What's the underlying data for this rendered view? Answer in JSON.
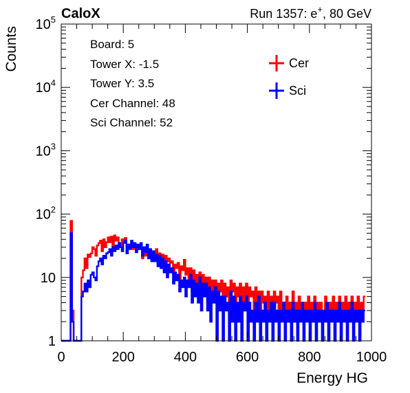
{
  "header": {
    "brand": "CaloX",
    "run_info": "Run 1357: e+, 80 GeV"
  },
  "info_box": [
    "Board: 5",
    "Tower X: -1.5",
    "Tower Y: 3.5",
    "Cer Channel: 48",
    "Sci Channel: 52"
  ],
  "colors": {
    "Cer": "#ff0000",
    "Sci": "#0000ff",
    "frame": "#000000"
  },
  "chart_data": {
    "type": "line",
    "style": "step-histogram",
    "xlabel": "Energy HG",
    "ylabel": "Counts",
    "xlim": [
      0,
      1000
    ],
    "ylim": [
      1,
      100000
    ],
    "yscale": "log",
    "grid": false,
    "legend_position": "top-right",
    "x_ticks": [
      "0",
      "200",
      "400",
      "600",
      "800",
      "1000"
    ],
    "y_ticks": [
      {
        "value": 1,
        "base": "1",
        "exp": ""
      },
      {
        "value": 10,
        "base": "10",
        "exp": ""
      },
      {
        "value": 100,
        "base": "10",
        "exp": "2"
      },
      {
        "value": 1000,
        "base": "10",
        "exp": "3"
      },
      {
        "value": 10000,
        "base": "10",
        "exp": "4"
      },
      {
        "value": 100000,
        "base": "10",
        "exp": "5"
      }
    ],
    "bin_width": 5,
    "x_start": 0,
    "series": [
      {
        "name": "Cer",
        "color": "#ff0000",
        "values": [
          0,
          0,
          0,
          0,
          0,
          0,
          78,
          3,
          0,
          0,
          0,
          0,
          0,
          10,
          13,
          20,
          14,
          23,
          21,
          24,
          30,
          28,
          22,
          32,
          35,
          38,
          26,
          40,
          30,
          36,
          43,
          36,
          44,
          30,
          46,
          38,
          43,
          35,
          30,
          40,
          36,
          42,
          32,
          33,
          30,
          38,
          28,
          34,
          25,
          32,
          28,
          30,
          20,
          26,
          22,
          30,
          24,
          26,
          20,
          23,
          18,
          28,
          17,
          24,
          20,
          23,
          16,
          22,
          18,
          20,
          17,
          18,
          12,
          16,
          14,
          17,
          9,
          15,
          13,
          19,
          11,
          14,
          8,
          14,
          6,
          13,
          8,
          11,
          7,
          12,
          6,
          11,
          8,
          10,
          4,
          10,
          5,
          9,
          6,
          9,
          4,
          8,
          6,
          9,
          4,
          8,
          5,
          7,
          4,
          9,
          6,
          8,
          3,
          7,
          5,
          8,
          4,
          7,
          3,
          8,
          4,
          7,
          5,
          6,
          3,
          7,
          4,
          6,
          2,
          6,
          4,
          5,
          3,
          6,
          2,
          5,
          3,
          6,
          4,
          5,
          2,
          6,
          3,
          4,
          2,
          5,
          3,
          4,
          2,
          6,
          3,
          4,
          2,
          5,
          3,
          4,
          2,
          4,
          3,
          5,
          2,
          4,
          3,
          5,
          2,
          4,
          3,
          4,
          2,
          3,
          5,
          3,
          2,
          4,
          3,
          5,
          2,
          4,
          3,
          5,
          2,
          4,
          3,
          5,
          2,
          4,
          3,
          5,
          2,
          4,
          3,
          5,
          2,
          4,
          3,
          5
        ]
      },
      {
        "name": "Sci",
        "color": "#0000ff",
        "values": [
          0,
          0,
          0,
          0,
          0,
          0,
          50,
          2,
          0,
          0,
          0,
          0,
          0,
          5,
          6,
          8,
          6,
          9,
          7,
          11,
          12,
          10,
          9,
          15,
          18,
          20,
          16,
          22,
          20,
          24,
          25,
          28,
          22,
          30,
          26,
          32,
          28,
          35,
          30,
          26,
          35,
          38,
          24,
          33,
          28,
          38,
          30,
          35,
          25,
          33,
          28,
          35,
          22,
          30,
          25,
          33,
          20,
          28,
          18,
          26,
          18,
          23,
          15,
          22,
          14,
          20,
          12,
          18,
          10,
          16,
          12,
          14,
          8,
          12,
          9,
          11,
          6,
          9,
          7,
          10,
          5,
          9,
          7,
          11,
          4,
          9,
          5,
          8,
          4,
          10,
          3,
          8,
          5,
          8,
          3,
          7,
          2,
          6,
          4,
          7,
          1,
          6,
          3,
          5,
          1,
          5,
          3,
          4,
          1,
          6,
          2,
          5,
          1,
          4,
          2,
          5,
          1,
          4,
          3,
          5,
          1,
          4,
          2,
          3,
          1,
          4,
          2,
          5,
          1,
          3,
          2,
          4,
          1,
          3,
          2,
          4,
          1,
          4,
          2,
          3,
          1,
          3,
          2,
          4,
          1,
          3,
          2,
          3,
          1,
          4,
          2,
          3,
          1,
          3,
          2,
          4,
          1,
          3,
          2,
          3,
          1,
          3,
          2,
          4,
          1,
          3,
          2,
          3,
          1,
          3,
          2,
          4,
          1,
          3,
          2,
          3,
          1,
          3,
          2,
          4,
          1,
          3,
          2,
          3,
          1,
          3,
          2,
          4,
          1,
          3,
          2,
          3,
          1,
          3,
          2,
          3
        ]
      }
    ]
  }
}
